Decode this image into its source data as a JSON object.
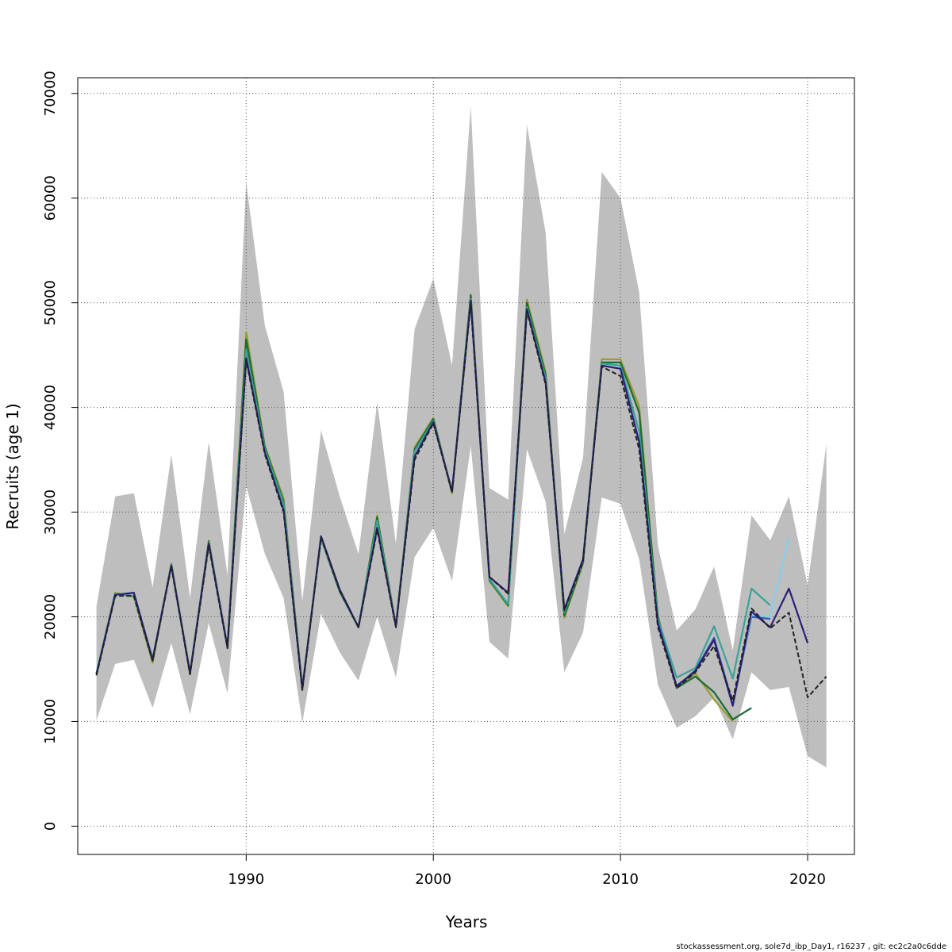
{
  "chart_data": {
    "type": "line",
    "title": "",
    "xlabel": "Years",
    "ylabel": "Recruits (age 1)",
    "xlim": [
      1981,
      2022.5
    ],
    "ylim": [
      -2700,
      71500
    ],
    "x_ticks": [
      1990,
      2000,
      2010,
      2020
    ],
    "y_ticks": [
      0,
      10000,
      20000,
      30000,
      40000,
      50000,
      60000,
      70000
    ],
    "grid": true,
    "colors": {
      "band": "#bebebe",
      "main": "#222222",
      "s2019": "#87ceeb",
      "s2020": "#2a1f7a",
      "s2018": "#3aa396",
      "s2017": "#1a6b35",
      "s2016": "#9a9a30",
      "blue_mid": "#2f5fb0"
    },
    "band": {
      "years": [
        1982,
        1983,
        1984,
        1985,
        1986,
        1987,
        1988,
        1989,
        1990,
        1991,
        1992,
        1993,
        1994,
        1995,
        1996,
        1997,
        1998,
        1999,
        2000,
        2001,
        2002,
        2003,
        2004,
        2005,
        2006,
        2007,
        2008,
        2009,
        2010,
        2011,
        2012,
        2013,
        2014,
        2015,
        2016,
        2017,
        2018,
        2019,
        2020,
        2021
      ],
      "upper": [
        21000,
        31500,
        31800,
        22800,
        35500,
        21800,
        36700,
        24000,
        61500,
        47800,
        41500,
        21500,
        37800,
        31500,
        26000,
        40500,
        27000,
        47500,
        52300,
        44000,
        68800,
        32300,
        31200,
        67000,
        56700,
        27900,
        35200,
        62500,
        60000,
        51000,
        26800,
        18700,
        20700,
        24800,
        16800,
        29700,
        27300,
        31500,
        23000,
        36500
      ],
      "lower": [
        10100,
        15500,
        15900,
        11300,
        17500,
        10700,
        19400,
        12700,
        32500,
        26000,
        21800,
        9900,
        20300,
        16600,
        13900,
        20000,
        14200,
        25700,
        28500,
        23400,
        36300,
        17600,
        16000,
        36000,
        31000,
        14700,
        18500,
        31400,
        30800,
        25500,
        13500,
        9400,
        10500,
        12300,
        8300,
        14700,
        13000,
        13300,
        6700,
        5600
      ]
    },
    "series": [
      {
        "name": "",
        "color": "#222222",
        "dashed": true,
        "years": [
          1982,
          1983,
          1984,
          1985,
          1986,
          1987,
          1988,
          1989,
          1990,
          1991,
          1992,
          1993,
          1994,
          1995,
          1996,
          1997,
          1998,
          1999,
          2000,
          2001,
          2002,
          2003,
          2004,
          2005,
          2006,
          2007,
          2008,
          2009,
          2010,
          2011,
          2012,
          2013,
          2014,
          2015,
          2016,
          2017,
          2018,
          2019,
          2020,
          2021
        ],
        "values": [
          14400,
          22000,
          22000,
          15800,
          24800,
          14500,
          26800,
          17000,
          44500,
          35500,
          30000,
          13000,
          27600,
          22500,
          19000,
          28300,
          19000,
          35000,
          38500,
          31900,
          50000,
          23800,
          22200,
          49200,
          42200,
          20600,
          25300,
          43900,
          43000,
          36000,
          19000,
          13200,
          14700,
          17200,
          12000,
          20800,
          18900,
          20400,
          12300,
          14300
        ]
      },
      {
        "name": "",
        "color": "#2a1f7a",
        "dashed": false,
        "years": [
          1982,
          1983,
          1984,
          1985,
          1986,
          1987,
          1988,
          1989,
          1990,
          1991,
          1992,
          1993,
          1994,
          1995,
          1996,
          1997,
          1998,
          1999,
          2000,
          2001,
          2002,
          2003,
          2004,
          2005,
          2006,
          2007,
          2008,
          2009,
          2010,
          2011,
          2012,
          2013,
          2014,
          2015,
          2016,
          2017,
          2018,
          2019,
          2020
        ],
        "values": [
          14500,
          22100,
          22300,
          15900,
          24900,
          14600,
          27000,
          17100,
          44700,
          35700,
          30200,
          13100,
          27700,
          22600,
          19000,
          28500,
          19100,
          35300,
          38600,
          32000,
          50200,
          23800,
          22300,
          49400,
          42400,
          20700,
          25500,
          44000,
          43700,
          36700,
          19300,
          13400,
          14800,
          17800,
          11500,
          20500,
          19000,
          22700,
          17500
        ]
      },
      {
        "name": "",
        "color": "#87ceeb",
        "dashed": false,
        "years": [
          2016,
          2017,
          2018,
          2019
        ],
        "values": [
          11800,
          20200,
          20000,
          27600
        ]
      },
      {
        "name": "",
        "color": "#2f5fb0",
        "dashed": false,
        "years": [
          2012,
          2013,
          2014,
          2015,
          2016,
          2017,
          2018
        ],
        "values": [
          19500,
          13300,
          14900,
          18000,
          11700,
          20000,
          19800
        ]
      },
      {
        "name": "",
        "color": "#3aa396",
        "dashed": false,
        "years": [
          1982,
          1983,
          1984,
          1985,
          1986,
          1987,
          1988,
          1989,
          1990,
          1991,
          1992,
          1993,
          1994,
          1995,
          1996,
          1997,
          1998,
          1999,
          2000,
          2001,
          2002,
          2003,
          2004,
          2005,
          2006,
          2007,
          2008,
          2009,
          2010,
          2011,
          2012,
          2013,
          2014,
          2015,
          2016,
          2017,
          2018
        ],
        "values": [
          14600,
          22200,
          22000,
          16000,
          25000,
          14700,
          27100,
          17200,
          45500,
          36000,
          30800,
          13200,
          27500,
          22600,
          19000,
          29200,
          19100,
          35800,
          38700,
          32000,
          50400,
          23600,
          21200,
          49600,
          42800,
          20400,
          25400,
          44200,
          44000,
          37700,
          19800,
          14200,
          15100,
          19100,
          14100,
          22700,
          21100
        ]
      },
      {
        "name": "",
        "color": "#1a6b35",
        "dashed": false,
        "years": [
          1982,
          1983,
          1984,
          1985,
          1986,
          1987,
          1988,
          1989,
          1990,
          1991,
          1992,
          1993,
          1994,
          1995,
          1996,
          1997,
          1998,
          1999,
          2000,
          2001,
          2002,
          2003,
          2004,
          2005,
          2006,
          2007,
          2008,
          2009,
          2010,
          2011,
          2012,
          2013,
          2014,
          2015,
          2016,
          2017
        ],
        "values": [
          14600,
          22200,
          22000,
          15800,
          25000,
          14600,
          27200,
          17100,
          46500,
          36200,
          31000,
          13200,
          27500,
          22400,
          19000,
          29500,
          19100,
          36000,
          38900,
          31900,
          50700,
          23500,
          21100,
          50000,
          43100,
          20100,
          25200,
          44300,
          44300,
          39500,
          20000,
          13200,
          14300,
          12800,
          10200,
          11300
        ]
      },
      {
        "name": "",
        "color": "#9a9a30",
        "dashed": false,
        "years": [
          1982,
          1983,
          1984,
          1985,
          1986,
          1987,
          1988,
          1989,
          1990,
          1991,
          1992,
          1993,
          1994,
          1995,
          1996,
          1997,
          1998,
          1999,
          2000,
          2001,
          2002,
          2003,
          2004,
          2005,
          2006,
          2007,
          2008,
          2009,
          2010,
          2011,
          2012,
          2013,
          2014,
          2015,
          2016
        ],
        "values": [
          14600,
          22300,
          21900,
          15600,
          25100,
          14500,
          27300,
          17000,
          47200,
          36300,
          31300,
          13300,
          27500,
          22500,
          19000,
          29700,
          19100,
          36200,
          39000,
          31800,
          50800,
          23400,
          21000,
          50300,
          43400,
          19900,
          25100,
          44600,
          44600,
          40100,
          20100,
          13200,
          14600,
          12100,
          10000
        ]
      }
    ]
  },
  "footer": {
    "text": "stockassessment.org, sole7d_ibp_Day1, r16237 , git: ec2c2a0c6dde"
  }
}
